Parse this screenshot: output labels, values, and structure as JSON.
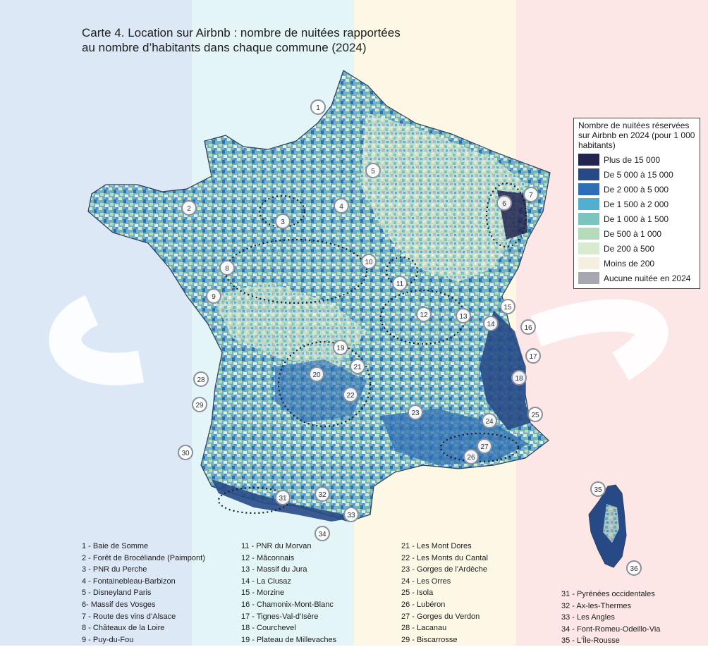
{
  "title_line1": "Carte 4. Location sur Airbnb : nombre de nuitées rapportées",
  "title_line2": "au nombre d’habitants dans chaque commune (2024)",
  "background_bands": [
    "#dde8f6",
    "#e4f5f7",
    "#fdf8e6",
    "#fde6e6"
  ],
  "legend": {
    "title": "Nombre de nuitées réservées sur Airbnb en 2024 (pour 1 000 habitants)",
    "items": [
      {
        "label": "Plus de 15 000",
        "color": "#22254f"
      },
      {
        "label": "De 5 000 à 15 000",
        "color": "#274a86"
      },
      {
        "label": "De 2 000 à 5 000",
        "color": "#2f6db4"
      },
      {
        "label": "De 1 500 à 2 000",
        "color": "#54aed2"
      },
      {
        "label": "De 1 000 à 1 500",
        "color": "#7cc4c0"
      },
      {
        "label": "De 500 à 1 000",
        "color": "#b5dbba"
      },
      {
        "label": "De 200 à 500",
        "color": "#d9ebcf"
      },
      {
        "label": "Moins de 200",
        "color": "#f4efe0"
      },
      {
        "label": "Aucune nuitée en 2024",
        "color": "#a7a7b1"
      }
    ]
  },
  "markers": [
    {
      "n": "1"
    },
    {
      "n": "2"
    },
    {
      "n": "3"
    },
    {
      "n": "4"
    },
    {
      "n": "5"
    },
    {
      "n": "6"
    },
    {
      "n": "7"
    },
    {
      "n": "8"
    },
    {
      "n": "9"
    },
    {
      "n": "10"
    },
    {
      "n": "11"
    },
    {
      "n": "12"
    },
    {
      "n": "13"
    },
    {
      "n": "14"
    },
    {
      "n": "15"
    },
    {
      "n": "16"
    },
    {
      "n": "17"
    },
    {
      "n": "18"
    },
    {
      "n": "19"
    },
    {
      "n": "20"
    },
    {
      "n": "21"
    },
    {
      "n": "22"
    },
    {
      "n": "23"
    },
    {
      "n": "24"
    },
    {
      "n": "25"
    },
    {
      "n": "26"
    },
    {
      "n": "27"
    },
    {
      "n": "28"
    },
    {
      "n": "29"
    },
    {
      "n": "30"
    },
    {
      "n": "31"
    },
    {
      "n": "32"
    },
    {
      "n": "33"
    },
    {
      "n": "34"
    },
    {
      "n": "35"
    },
    {
      "n": "36"
    }
  ],
  "places_col1": [
    "1 - Baie de Somme",
    "2 - Forêt de Brocéliande (Paimpont)",
    "3 - PNR du Perche",
    "4 - Fontainebleau-Barbizon",
    "5 - Disneyland Paris",
    "6- Massif des Vosges",
    "7 - Route des vins d’Alsace",
    "8 - Châteaux de la Loire",
    "9 - Puy-du-Fou"
  ],
  "places_col2": [
    "11 - PNR du Morvan",
    "12 - Mâconnais",
    "13 - Massif du Jura",
    "14 - La Clusaz",
    "15 - Morzine",
    "16 - Chamonix-Mont-Blanc",
    "17 - Tignes-Val-d'Isère",
    "18 - Courchevel",
    "19 - Plateau de Millevaches"
  ],
  "places_col3": [
    "21 - Les Mont Dores",
    "22 - Les Monts du Cantal",
    "23 - Gorges de l'Ardèche",
    "24 - Les Orres",
    "25 - Isola",
    "26 - Lubéron",
    "27 - Gorges du Verdon",
    "28 - Lacanau",
    "29 - Biscarrosse"
  ],
  "places_col4": [
    "31 - Pyrénées occidentales",
    "32 - Ax-les-Thermes",
    "33 - Les Angles",
    "34 - Font-Romeu-Odeillo-Via",
    "35 - L'Île-Rousse"
  ]
}
